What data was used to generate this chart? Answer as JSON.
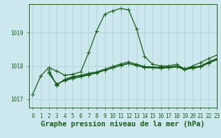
{
  "background_color": "#cce8ee",
  "grid_color": "#aacccc",
  "line_color": "#1a5c1a",
  "title": "Graphe pression niveau de la mer (hPa)",
  "xlim": [
    -0.5,
    23
  ],
  "ylim": [
    1016.75,
    1019.85
  ],
  "yticks": [
    1017,
    1018,
    1019
  ],
  "xticks": [
    0,
    1,
    2,
    3,
    4,
    5,
    6,
    7,
    8,
    9,
    10,
    11,
    12,
    13,
    14,
    15,
    16,
    17,
    18,
    19,
    20,
    21,
    22,
    23
  ],
  "series": [
    {
      "x": [
        0,
        1,
        2,
        3,
        4,
        5,
        6,
        7,
        8,
        9,
        10,
        11,
        12,
        13,
        14,
        15,
        16,
        17,
        18,
        19,
        20,
        21,
        22,
        23
      ],
      "y": [
        1017.15,
        1017.7,
        1017.95,
        1017.85,
        1017.72,
        1017.75,
        1017.82,
        1018.4,
        1019.05,
        1019.55,
        1019.65,
        1019.72,
        1019.68,
        1019.1,
        1018.28,
        1018.05,
        1018.0,
        1018.0,
        1018.05,
        1017.9,
        1018.0,
        1018.1,
        1018.22,
        1018.32
      ]
    },
    {
      "x": [
        2,
        3,
        4,
        5,
        6,
        7,
        8,
        9,
        10,
        11,
        12,
        13,
        14,
        15,
        16,
        17,
        18,
        19,
        20,
        21,
        22,
        23
      ],
      "y": [
        1017.88,
        1017.42,
        1017.6,
        1017.68,
        1017.72,
        1017.78,
        1017.82,
        1017.9,
        1017.98,
        1018.06,
        1018.12,
        1018.05,
        1017.98,
        1017.97,
        1017.96,
        1017.97,
        1018.0,
        1017.92,
        1017.96,
        1018.0,
        1018.12,
        1018.22
      ]
    },
    {
      "x": [
        2,
        3,
        4,
        5,
        6,
        7,
        8,
        9,
        10,
        11,
        12,
        13,
        14,
        15,
        16,
        17,
        18,
        19,
        20,
        21,
        22,
        23
      ],
      "y": [
        1017.82,
        1017.44,
        1017.58,
        1017.65,
        1017.7,
        1017.75,
        1017.8,
        1017.87,
        1017.94,
        1018.02,
        1018.08,
        1018.02,
        1017.96,
        1017.95,
        1017.94,
        1017.95,
        1017.98,
        1017.9,
        1017.94,
        1017.98,
        1018.1,
        1018.2
      ]
    },
    {
      "x": [
        2,
        3,
        4,
        5,
        6,
        7,
        8,
        9,
        10,
        11,
        12,
        13,
        14,
        15,
        16,
        17,
        18,
        19,
        20,
        21,
        22,
        23
      ],
      "y": [
        1017.78,
        1017.46,
        1017.56,
        1017.62,
        1017.67,
        1017.73,
        1017.79,
        1017.87,
        1017.94,
        1018.01,
        1018.07,
        1018.01,
        1017.95,
        1017.94,
        1017.93,
        1017.94,
        1017.97,
        1017.89,
        1017.93,
        1017.97,
        1018.08,
        1018.18
      ]
    }
  ],
  "marker": "+",
  "markersize": 4,
  "linewidth": 0.9,
  "title_fontsize": 7.5,
  "tick_fontsize": 5.5
}
